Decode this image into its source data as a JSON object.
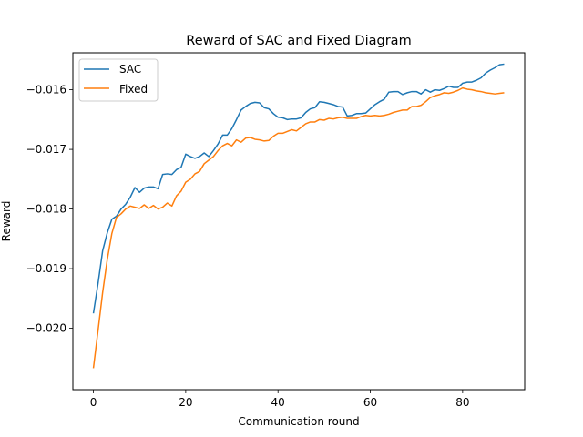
{
  "chart_data": {
    "type": "line",
    "title": "Reward of SAC and Fixed Diagram",
    "xlabel": "Communication round",
    "ylabel": "Reward",
    "xlim": [
      -4.45,
      93.45
    ],
    "ylim": [
      -0.02103,
      -0.01538
    ],
    "xticks": [
      0,
      20,
      40,
      60,
      80
    ],
    "xtick_labels": [
      "0",
      "20",
      "40",
      "60",
      "80"
    ],
    "yticks": [
      -0.02,
      -0.019,
      -0.018,
      -0.017,
      -0.016
    ],
    "ytick_labels": [
      "−0.020",
      "−0.019",
      "−0.018",
      "−0.017",
      "−0.016"
    ],
    "grid": false,
    "legend_position": "top-left",
    "series": [
      {
        "name": "SAC",
        "color": "#1f77b4",
        "x": [
          0,
          1,
          2,
          3,
          4,
          5,
          6,
          7,
          8,
          9,
          10,
          11,
          12,
          13,
          14,
          15,
          16,
          17,
          18,
          19,
          20,
          21,
          22,
          23,
          24,
          25,
          26,
          27,
          28,
          29,
          30,
          31,
          32,
          33,
          34,
          35,
          36,
          37,
          38,
          39,
          40,
          41,
          42,
          43,
          44,
          45,
          46,
          47,
          48,
          49,
          50,
          51,
          52,
          53,
          54,
          55,
          56,
          57,
          58,
          59,
          60,
          61,
          62,
          63,
          64,
          65,
          66,
          67,
          68,
          69,
          70,
          71,
          72,
          73,
          74,
          75,
          76,
          77,
          78,
          79,
          80,
          81,
          82,
          83,
          84,
          85,
          86,
          87,
          88,
          89
        ],
        "y": [
          -0.01975,
          -0.01925,
          -0.0187,
          -0.0184,
          -0.01817,
          -0.01812,
          -0.018,
          -0.01792,
          -0.0178,
          -0.01764,
          -0.01772,
          -0.01765,
          -0.01763,
          -0.01763,
          -0.01766,
          -0.01742,
          -0.01741,
          -0.01742,
          -0.01734,
          -0.0173,
          -0.01708,
          -0.01712,
          -0.01715,
          -0.01712,
          -0.01706,
          -0.01712,
          -0.01702,
          -0.01691,
          -0.01676,
          -0.01676,
          -0.01665,
          -0.0165,
          -0.01634,
          -0.01628,
          -0.01623,
          -0.01621,
          -0.01622,
          -0.0163,
          -0.01632,
          -0.0164,
          -0.01646,
          -0.01647,
          -0.0165,
          -0.01649,
          -0.01649,
          -0.01647,
          -0.01638,
          -0.01632,
          -0.0163,
          -0.0162,
          -0.01621,
          -0.01623,
          -0.01625,
          -0.01628,
          -0.01629,
          -0.01644,
          -0.01643,
          -0.0164,
          -0.0164,
          -0.01639,
          -0.01632,
          -0.01625,
          -0.0162,
          -0.01616,
          -0.01604,
          -0.01603,
          -0.01603,
          -0.01608,
          -0.01605,
          -0.01603,
          -0.01603,
          -0.01607,
          -0.016,
          -0.01604,
          -0.016,
          -0.01601,
          -0.01598,
          -0.01594,
          -0.01596,
          -0.01596,
          -0.01589,
          -0.01587,
          -0.01587,
          -0.01584,
          -0.0158,
          -0.01572,
          -0.01567,
          -0.01563,
          -0.01558,
          -0.01557
        ]
      },
      {
        "name": "Fixed",
        "color": "#ff7f0e",
        "x": [
          0,
          1,
          2,
          3,
          4,
          5,
          6,
          7,
          8,
          9,
          10,
          11,
          12,
          13,
          14,
          15,
          16,
          17,
          18,
          19,
          20,
          21,
          22,
          23,
          24,
          25,
          26,
          27,
          28,
          29,
          30,
          31,
          32,
          33,
          34,
          35,
          36,
          37,
          38,
          39,
          40,
          41,
          42,
          43,
          44,
          45,
          46,
          47,
          48,
          49,
          50,
          51,
          52,
          53,
          54,
          55,
          56,
          57,
          58,
          59,
          60,
          61,
          62,
          63,
          64,
          65,
          66,
          67,
          68,
          69,
          70,
          71,
          72,
          73,
          74,
          75,
          76,
          77,
          78,
          79,
          80,
          81,
          82,
          83,
          84,
          85,
          86,
          87,
          88,
          89
        ],
        "y": [
          -0.02067,
          -0.02004,
          -0.0194,
          -0.01885,
          -0.01841,
          -0.01814,
          -0.01808,
          -0.018,
          -0.01795,
          -0.01797,
          -0.01799,
          -0.01793,
          -0.01799,
          -0.01794,
          -0.018,
          -0.01797,
          -0.0179,
          -0.01795,
          -0.01778,
          -0.0177,
          -0.01755,
          -0.0175,
          -0.01741,
          -0.01737,
          -0.01724,
          -0.01718,
          -0.01712,
          -0.01702,
          -0.01694,
          -0.0169,
          -0.01694,
          -0.01684,
          -0.01688,
          -0.01681,
          -0.0168,
          -0.01683,
          -0.01684,
          -0.01686,
          -0.01685,
          -0.01678,
          -0.01673,
          -0.01673,
          -0.0167,
          -0.01667,
          -0.01669,
          -0.01663,
          -0.01657,
          -0.01654,
          -0.01654,
          -0.0165,
          -0.01651,
          -0.01648,
          -0.01649,
          -0.01647,
          -0.01646,
          -0.01648,
          -0.01648,
          -0.01648,
          -0.01645,
          -0.01643,
          -0.01644,
          -0.01643,
          -0.01644,
          -0.01643,
          -0.01641,
          -0.01638,
          -0.01636,
          -0.01634,
          -0.01634,
          -0.01628,
          -0.01628,
          -0.01626,
          -0.0162,
          -0.01613,
          -0.0161,
          -0.01608,
          -0.01605,
          -0.01606,
          -0.01604,
          -0.01601,
          -0.01597,
          -0.01599,
          -0.016,
          -0.01602,
          -0.01603,
          -0.01605,
          -0.01606,
          -0.01607,
          -0.01606,
          -0.01605
        ]
      }
    ]
  }
}
